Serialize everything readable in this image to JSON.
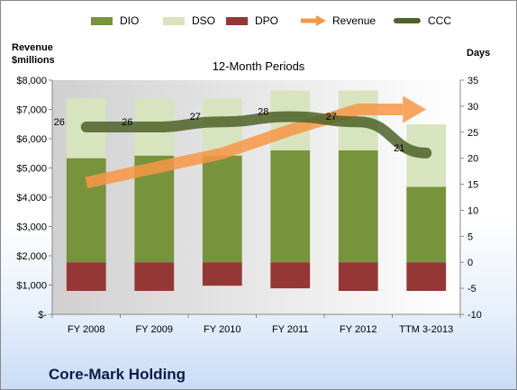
{
  "chart_data": {
    "type": "bar",
    "title": "12-Month Periods",
    "ylabel_left": "Revenue $millions",
    "ylabel_right": "Days",
    "categories": [
      "FY 2008",
      "FY 2009",
      "FY 2010",
      "FY 2011",
      "FY 2012",
      "TTM 3-2013"
    ],
    "left_axis": {
      "ylim": [
        0,
        8000
      ],
      "ticks": [
        0,
        1000,
        2000,
        3000,
        4000,
        5000,
        6000,
        7000,
        8000
      ],
      "tick_labels": [
        "$-",
        "$1,000",
        "$2,000",
        "$3,000",
        "$4,000",
        "$5,000",
        "$6,000",
        "$7,000",
        "$8,000"
      ]
    },
    "right_axis": {
      "ylim": [
        -10,
        35
      ],
      "ticks": [
        -10,
        -5,
        0,
        5,
        10,
        15,
        20,
        25,
        30,
        35
      ],
      "tick_labels": [
        "-10",
        "-5",
        "0",
        "5",
        "10",
        "15",
        "20",
        "25",
        "30",
        "35"
      ]
    },
    "series": [
      {
        "name": "DIO",
        "axis": "right",
        "type": "stacked-bar",
        "color": "#77933c",
        "values": [
          20,
          20.5,
          20.5,
          21.5,
          21.5,
          14.5
        ]
      },
      {
        "name": "DSO",
        "axis": "right",
        "type": "stacked-bar",
        "color": "#d7e4bd",
        "values": [
          11.5,
          11,
          11,
          11.5,
          11.5,
          12
        ]
      },
      {
        "name": "DPO",
        "axis": "right",
        "type": "stacked-bar-negative",
        "color": "#953735",
        "values": [
          -5.5,
          -5.5,
          -4.5,
          -5,
          -5.5,
          -5.5
        ]
      },
      {
        "name": "Revenue",
        "axis": "left",
        "type": "line-arrow",
        "color": "#f79646",
        "values": [
          4500,
          5000,
          5500,
          6300,
          7000,
          7000
        ]
      },
      {
        "name": "CCC",
        "axis": "right",
        "type": "line",
        "color": "#4f6228",
        "values": [
          26,
          26,
          27,
          28,
          27,
          21
        ],
        "data_labels": [
          "26",
          "26",
          "27",
          "28",
          "27",
          "21"
        ]
      }
    ],
    "legend": [
      "DIO",
      "DSO",
      "DPO",
      "Revenue",
      "CCC"
    ],
    "legend_position": "top",
    "grid": false
  },
  "footer": {
    "company": "Core-Mark Holding"
  }
}
